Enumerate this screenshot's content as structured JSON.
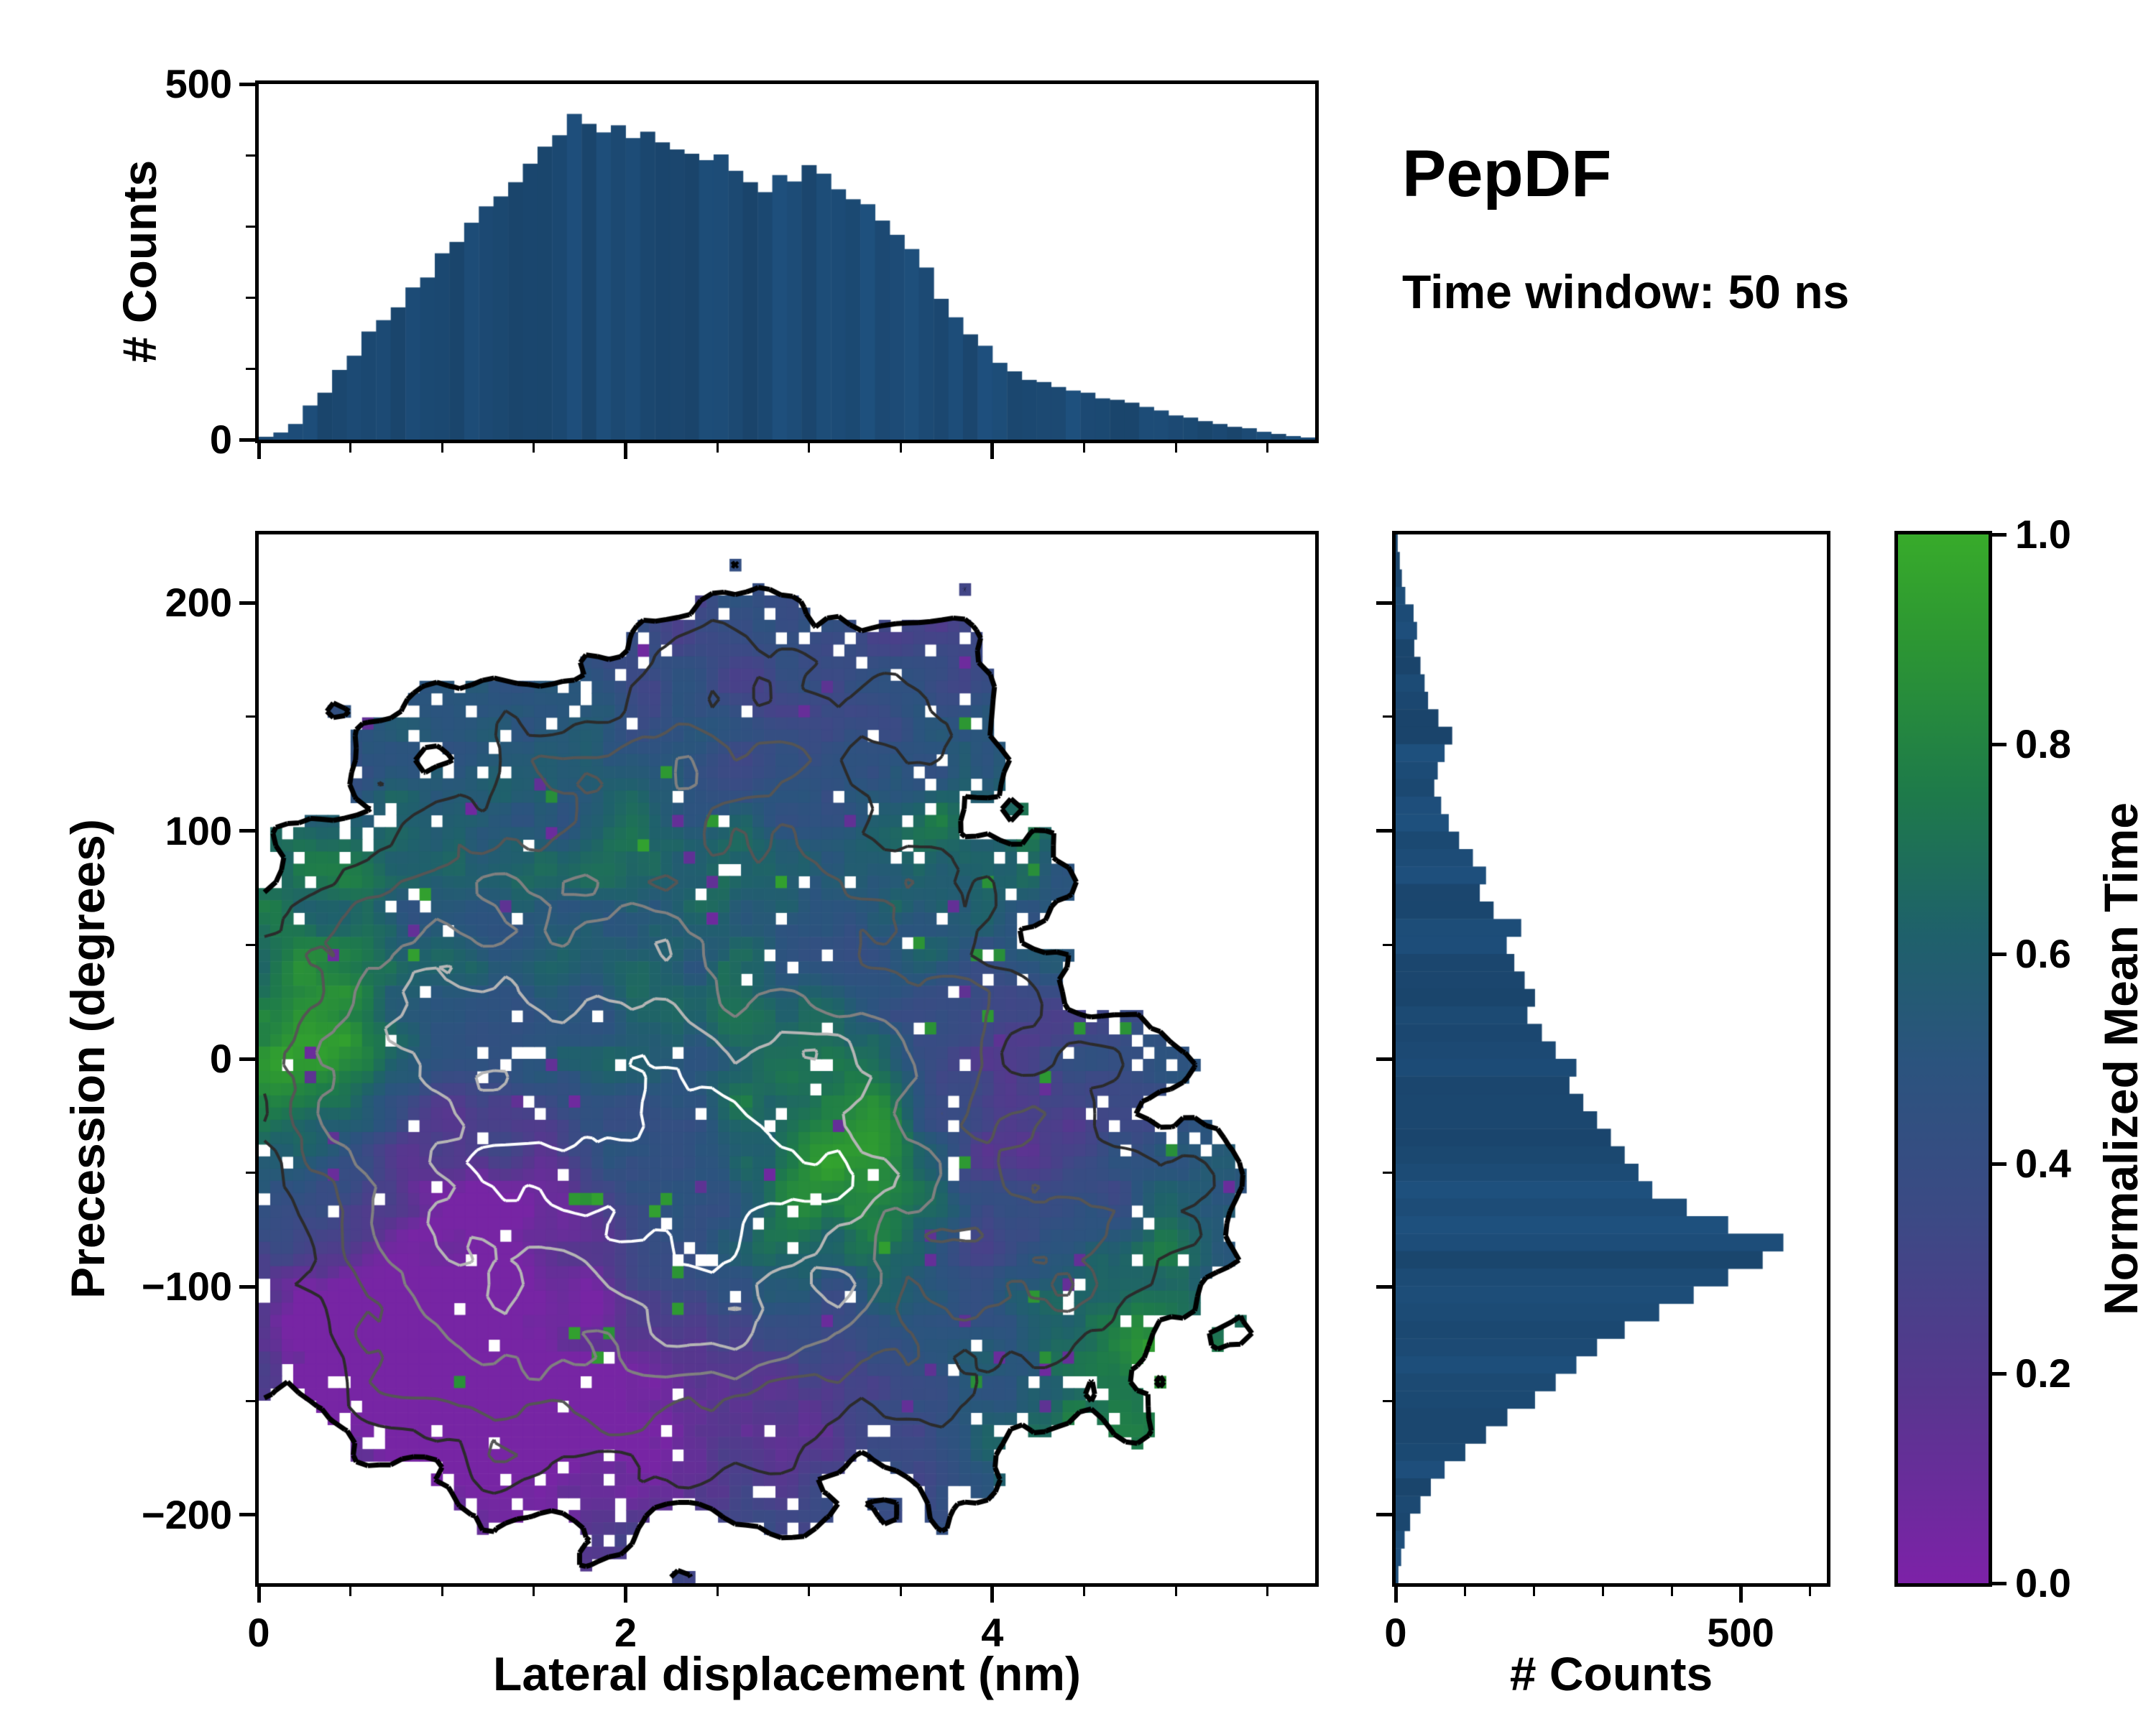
{
  "title": "PepDF",
  "subtitle": "Time window: 50 ns",
  "colors": {
    "histogram_bar": "#1c4a74",
    "axis": "#000000",
    "background": "#ffffff"
  },
  "chart_data": {
    "type": "heatmap",
    "title": "PepDF",
    "annotation": "Time window: 50 ns",
    "main": {
      "xlabel": "Lateral displacement (nm)",
      "ylabel": "Precession (degrees)",
      "xlim": [
        0,
        5.76
      ],
      "ylim": [
        -230,
        230
      ],
      "xticks": [
        0,
        2,
        4
      ],
      "yticks": [
        -200,
        -100,
        0,
        100,
        200
      ],
      "colorbar": {
        "label": "Normalized Mean Time",
        "range": [
          0.0,
          1.0
        ],
        "ticks": [
          0.0,
          0.2,
          0.4,
          0.6,
          0.8,
          1.0
        ],
        "stops": [
          {
            "v": 0.0,
            "c": "#7d22a8"
          },
          {
            "v": 0.18,
            "c": "#58368f"
          },
          {
            "v": 0.35,
            "c": "#3c4a85"
          },
          {
            "v": 0.5,
            "c": "#2b547e"
          },
          {
            "v": 0.62,
            "c": "#1f616b"
          },
          {
            "v": 0.75,
            "c": "#1e7a4b"
          },
          {
            "v": 0.9,
            "c": "#2d9733"
          },
          {
            "v": 1.0,
            "c": "#38ab2b"
          }
        ]
      },
      "grid_bins": [
        92,
        86
      ],
      "occupancy_level": 0.2,
      "contour_levels": [
        0.2,
        0.33,
        0.46,
        0.59,
        0.72,
        0.85
      ],
      "contour_colors": [
        "#000000",
        "#2b2b2b",
        "#555555",
        "#808080",
        "#b5b5b5",
        "#ffffff"
      ],
      "density_blobs": [
        {
          "x": 2.1,
          "y": -30,
          "sx": 1.25,
          "sy": 95,
          "a": 1.0
        },
        {
          "x": 2.7,
          "y": -70,
          "sx": 0.9,
          "sy": 55,
          "a": 0.75
        },
        {
          "x": 3.1,
          "y": 165,
          "sx": 0.95,
          "sy": 42,
          "a": 0.42
        },
        {
          "x": 2.2,
          "y": 135,
          "sx": 0.6,
          "sy": 38,
          "a": 0.28
        },
        {
          "x": 4.45,
          "y": -55,
          "sx": 0.58,
          "sy": 55,
          "a": 0.34
        },
        {
          "x": 4.3,
          "y": -140,
          "sx": 0.55,
          "sy": 45,
          "a": 0.34
        },
        {
          "x": 0.75,
          "y": -90,
          "sx": 0.55,
          "sy": 70,
          "a": 0.45
        },
        {
          "x": 0.5,
          "y": 10,
          "sx": 0.5,
          "sy": 60,
          "a": 0.38
        },
        {
          "x": 1.3,
          "y": 55,
          "sx": 0.8,
          "sy": 70,
          "a": 0.5
        },
        {
          "x": 3.4,
          "y": 55,
          "sx": 0.7,
          "sy": 62,
          "a": 0.42
        },
        {
          "x": 2.0,
          "y": -160,
          "sx": 0.95,
          "sy": 45,
          "a": 0.32
        },
        {
          "x": 5.2,
          "y": -60,
          "sx": 0.45,
          "sy": 45,
          "a": 0.26
        }
      ],
      "value_tints": [
        {
          "x": 0.25,
          "y": 0,
          "sx": 0.4,
          "sy": 50,
          "a": 0.5
        },
        {
          "x": 3.3,
          "y": -45,
          "sx": 0.4,
          "sy": 38,
          "a": 0.42
        },
        {
          "x": 4.6,
          "y": -140,
          "sx": 0.8,
          "sy": 55,
          "a": 0.4
        },
        {
          "x": 3.9,
          "y": 95,
          "sx": 0.45,
          "sy": 32,
          "a": 0.26
        },
        {
          "x": 1.8,
          "y": 80,
          "sx": 0.9,
          "sy": 50,
          "a": 0.16
        },
        {
          "x": 0.8,
          "y": -125,
          "sx": 0.9,
          "sy": 62,
          "a": -0.45
        },
        {
          "x": 2.3,
          "y": -168,
          "sx": 1.3,
          "sy": 40,
          "a": -0.32
        },
        {
          "x": 4.0,
          "y": -55,
          "sx": 0.5,
          "sy": 58,
          "a": -0.34
        },
        {
          "x": 2.9,
          "y": 180,
          "sx": 1.7,
          "sy": 48,
          "a": -0.13
        },
        {
          "x": 1.1,
          "y": -60,
          "sx": 0.55,
          "sy": 42,
          "a": -0.22
        },
        {
          "x": 2.4,
          "y": -20,
          "sx": 0.9,
          "sy": 60,
          "a": 0.08
        }
      ]
    },
    "top_histogram": {
      "ylabel": "# Counts",
      "ylim": [
        0,
        500
      ],
      "yticks": [
        0,
        500
      ],
      "bin_start": 0,
      "bin_width": 0.08,
      "values": [
        4,
        10,
        22,
        48,
        66,
        98,
        118,
        152,
        168,
        186,
        214,
        228,
        262,
        278,
        305,
        328,
        342,
        362,
        388,
        412,
        428,
        458,
        444,
        432,
        442,
        424,
        433,
        418,
        408,
        402,
        393,
        401,
        378,
        362,
        348,
        372,
        363,
        386,
        374,
        352,
        338,
        331,
        308,
        288,
        268,
        242,
        198,
        172,
        148,
        132,
        108,
        96,
        84,
        81,
        74,
        69,
        66,
        58,
        56,
        52,
        46,
        41,
        34,
        31,
        26,
        22,
        18,
        16,
        11,
        8,
        5,
        3
      ]
    },
    "right_histogram": {
      "xlabel": "# Counts",
      "xlim": [
        0,
        625
      ],
      "xticks": [
        0,
        500
      ],
      "bin_start": 230,
      "bin_width": -7.6667,
      "values": [
        3,
        6,
        9,
        14,
        26,
        31,
        27,
        36,
        42,
        47,
        62,
        82,
        71,
        61,
        56,
        66,
        77,
        92,
        112,
        131,
        122,
        142,
        182,
        161,
        172,
        187,
        202,
        191,
        212,
        232,
        262,
        252,
        272,
        292,
        312,
        332,
        352,
        372,
        422,
        482,
        562,
        532,
        482,
        432,
        382,
        332,
        292,
        262,
        232,
        202,
        162,
        131,
        101,
        71,
        51,
        36,
        21,
        13,
        8,
        4
      ]
    }
  }
}
